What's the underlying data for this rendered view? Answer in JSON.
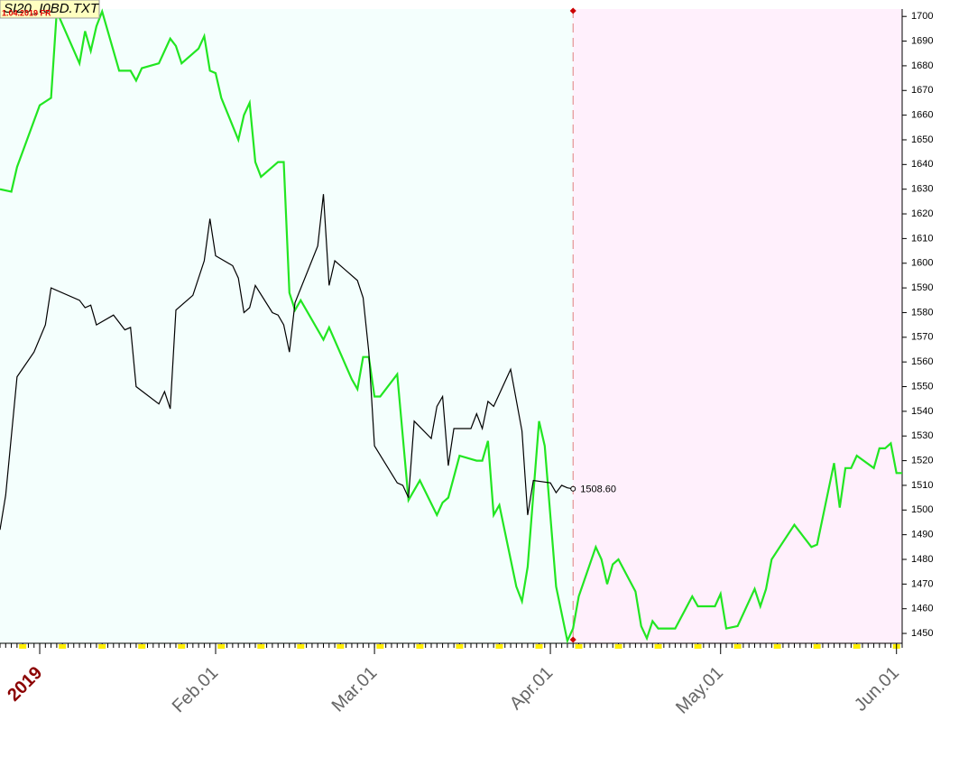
{
  "chart_data": {
    "type": "line",
    "title": "SI20_I0BD.TXT",
    "subtitle": "1.04.2019 FR",
    "xlim": [
      "2018-12-25",
      "2019-06-02"
    ],
    "xticks": [
      {
        "value": "2019-01-01",
        "label": "2019"
      },
      {
        "value": "2019-02-01",
        "label": "Feb.01"
      },
      {
        "value": "2019-03-01",
        "label": "Mar.01"
      },
      {
        "value": "2019-04-01",
        "label": "Apr.01"
      },
      {
        "value": "2019-05-01",
        "label": "May.01"
      },
      {
        "value": "2019-06-01",
        "label": "Jun.01"
      }
    ],
    "ylim": [
      1446,
      1703
    ],
    "yticks": [
      1450,
      1460,
      1470,
      1480,
      1490,
      1500,
      1510,
      1520,
      1530,
      1540,
      1550,
      1560,
      1570,
      1580,
      1590,
      1600,
      1610,
      1620,
      1630,
      1640,
      1650,
      1660,
      1670,
      1680,
      1690,
      1700
    ],
    "forecast_start": "2019-04-05",
    "series": [
      {
        "color": "#000000",
        "x": [
          "2018-12-25",
          "2018-12-26",
          "2018-12-28",
          "2018-12-31",
          "2019-01-02",
          "2019-01-03",
          "2019-01-08",
          "2019-01-09",
          "2019-01-10",
          "2019-01-11",
          "2019-01-14",
          "2019-01-16",
          "2019-01-17",
          "2019-01-18",
          "2019-01-22",
          "2019-01-23",
          "2019-01-24",
          "2019-01-25",
          "2019-01-28",
          "2019-01-30",
          "2019-01-31",
          "2019-02-01",
          "2019-02-04",
          "2019-02-05",
          "2019-02-06",
          "2019-02-07",
          "2019-02-08",
          "2019-02-11",
          "2019-02-12",
          "2019-02-13",
          "2019-02-14",
          "2019-02-15",
          "2019-02-19",
          "2019-02-20",
          "2019-02-21",
          "2019-02-22",
          "2019-02-26",
          "2019-02-27",
          "2019-02-28",
          "2019-03-01",
          "2019-03-05",
          "2019-03-06",
          "2019-03-07",
          "2019-03-08",
          "2019-03-11",
          "2019-03-12",
          "2019-03-13",
          "2019-03-14",
          "2019-03-15",
          "2019-03-18",
          "2019-03-19",
          "2019-03-20",
          "2019-03-21",
          "2019-03-22",
          "2019-03-25",
          "2019-03-27",
          "2019-03-28",
          "2019-03-29",
          "2019-04-01",
          "2019-04-02",
          "2019-04-03",
          "2019-04-04",
          "2019-04-05"
        ],
        "values": [
          1492,
          1506,
          1554,
          1564,
          1575,
          1590,
          1585,
          1582,
          1583,
          1575,
          1579,
          1573,
          1574,
          1550,
          1543,
          1548,
          1541,
          1581,
          1587,
          1601,
          1618,
          1603,
          1599,
          1594,
          1580,
          1582,
          1591,
          1580,
          1579,
          1575,
          1564,
          1584,
          1607,
          1628,
          1591,
          1601,
          1593,
          1586,
          1564,
          1526,
          1511,
          1510,
          1505,
          1536,
          1529,
          1542,
          1546,
          1518,
          1533,
          1533,
          1539,
          1533,
          1544,
          1542,
          1557,
          1532,
          1498,
          1512,
          1511,
          1507,
          1510,
          1509,
          1508.6
        ]
      },
      {
        "color": "#22e622",
        "x": [
          "2018-12-25",
          "2018-12-27",
          "2018-12-28",
          "2019-01-01",
          "2019-01-03",
          "2019-01-04",
          "2019-01-08",
          "2019-01-09",
          "2019-01-10",
          "2019-01-11",
          "2019-01-12",
          "2019-01-15",
          "2019-01-17",
          "2019-01-18",
          "2019-01-19",
          "2019-01-22",
          "2019-01-24",
          "2019-01-25",
          "2019-01-26",
          "2019-01-29",
          "2019-01-30",
          "2019-01-31",
          "2019-02-01",
          "2019-02-02",
          "2019-02-05",
          "2019-02-06",
          "2019-02-07",
          "2019-02-08",
          "2019-02-09",
          "2019-02-12",
          "2019-02-13",
          "2019-02-14",
          "2019-02-15",
          "2019-02-16",
          "2019-02-20",
          "2019-02-21",
          "2019-02-25",
          "2019-02-26",
          "2019-02-27",
          "2019-02-28",
          "2019-03-01",
          "2019-03-02",
          "2019-03-05",
          "2019-03-07",
          "2019-03-09",
          "2019-03-12",
          "2019-03-13",
          "2019-03-14",
          "2019-03-16",
          "2019-03-19",
          "2019-03-20",
          "2019-03-21",
          "2019-03-22",
          "2019-03-23",
          "2019-03-26",
          "2019-03-27",
          "2019-03-28",
          "2019-03-30",
          "2019-03-31",
          "2019-04-02",
          "2019-04-04",
          "2019-04-05",
          "2019-04-06",
          "2019-04-09",
          "2019-04-10",
          "2019-04-11",
          "2019-04-12",
          "2019-04-13",
          "2019-04-16",
          "2019-04-17",
          "2019-04-18",
          "2019-04-19",
          "2019-04-20",
          "2019-04-23",
          "2019-04-26",
          "2019-04-27",
          "2019-04-30",
          "2019-05-01",
          "2019-05-02",
          "2019-05-04",
          "2019-05-07",
          "2019-05-08",
          "2019-05-09",
          "2019-05-10",
          "2019-05-14",
          "2019-05-17",
          "2019-05-18",
          "2019-05-21",
          "2019-05-22",
          "2019-05-23",
          "2019-05-24",
          "2019-05-25",
          "2019-05-28",
          "2019-05-29",
          "2019-05-30",
          "2019-05-31",
          "2019-06-01",
          "2019-06-02"
        ],
        "values": [
          1630,
          1629,
          1639,
          1664,
          1667,
          1702,
          1681,
          1694,
          1686,
          1696,
          1702,
          1678,
          1678,
          1674,
          1679,
          1681,
          1691,
          1688,
          1681,
          1687,
          1692,
          1678,
          1677,
          1667,
          1650,
          1660,
          1665,
          1641,
          1635,
          1641,
          1641,
          1588,
          1581,
          1585,
          1569,
          1574,
          1553,
          1549,
          1562,
          1562,
          1546,
          1546,
          1555,
          1504,
          1512,
          1498,
          1503,
          1505,
          1522,
          1520,
          1520,
          1528,
          1498,
          1502,
          1469,
          1463,
          1477,
          1536,
          1526,
          1469,
          1447,
          1452,
          1465,
          1485,
          1480,
          1470,
          1478,
          1480,
          1467,
          1453,
          1448,
          1455,
          1452,
          1452,
          1465,
          1461,
          1461,
          1466,
          1452,
          1453,
          1468,
          1461,
          1468,
          1480,
          1494,
          1485,
          1486,
          1519,
          1501,
          1517,
          1517,
          1522,
          1517,
          1525,
          1525,
          1527,
          1515,
          1515
        ]
      }
    ],
    "annotations": [
      {
        "text": "1508.60",
        "x": "2019-04-05",
        "y": 1508.6
      }
    ]
  }
}
